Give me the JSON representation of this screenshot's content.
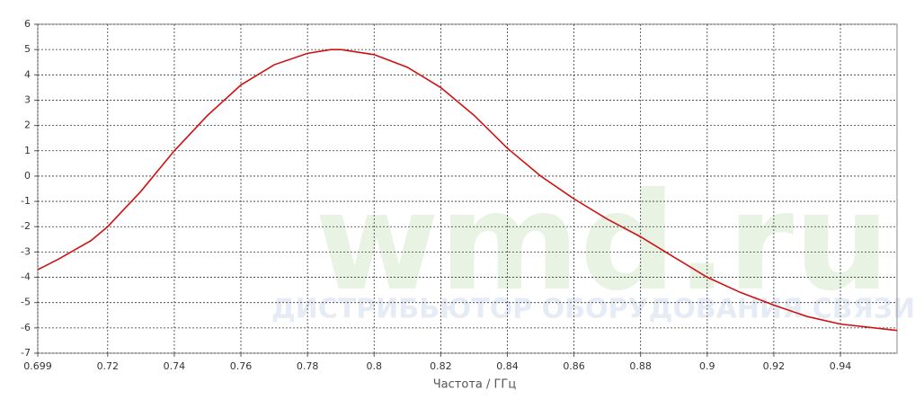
{
  "chart_data": {
    "type": "line",
    "xlabel": "Частота / ГГц",
    "watermark": {
      "logo": "wmd.ru",
      "tagline": "ДИСТРИБЬЮТОР ОБОРУДОВАНИЯ СВЯЗИ"
    },
    "x": [
      0.699,
      0.705,
      0.715,
      0.72,
      0.73,
      0.74,
      0.75,
      0.76,
      0.77,
      0.78,
      0.787,
      0.79,
      0.8,
      0.81,
      0.82,
      0.83,
      0.84,
      0.85,
      0.86,
      0.87,
      0.88,
      0.89,
      0.9,
      0.91,
      0.92,
      0.93,
      0.94,
      0.957
    ],
    "series": [
      {
        "color": "#d01010",
        "values": [
          -3.7,
          -3.3,
          -2.55,
          -2.0,
          -0.6,
          1.0,
          2.4,
          3.6,
          4.4,
          4.85,
          5.0,
          5.0,
          4.8,
          4.3,
          3.5,
          2.4,
          1.1,
          0.0,
          -0.9,
          -1.7,
          -2.4,
          -3.2,
          -4.0,
          -4.6,
          -5.1,
          -5.55,
          -5.85,
          -6.1
        ]
      }
    ],
    "xlim": [
      0.699,
      0.957
    ],
    "ylim": [
      -7,
      6
    ],
    "xticks": [
      0.699,
      0.72,
      0.74,
      0.76,
      0.78,
      0.8,
      0.82,
      0.84,
      0.86,
      0.88,
      0.9,
      0.92,
      0.94
    ],
    "yticks": [
      -7,
      -6,
      -5,
      -4,
      -3,
      -2,
      -1,
      0,
      1,
      2,
      3,
      4,
      5,
      6
    ],
    "grid": true
  }
}
